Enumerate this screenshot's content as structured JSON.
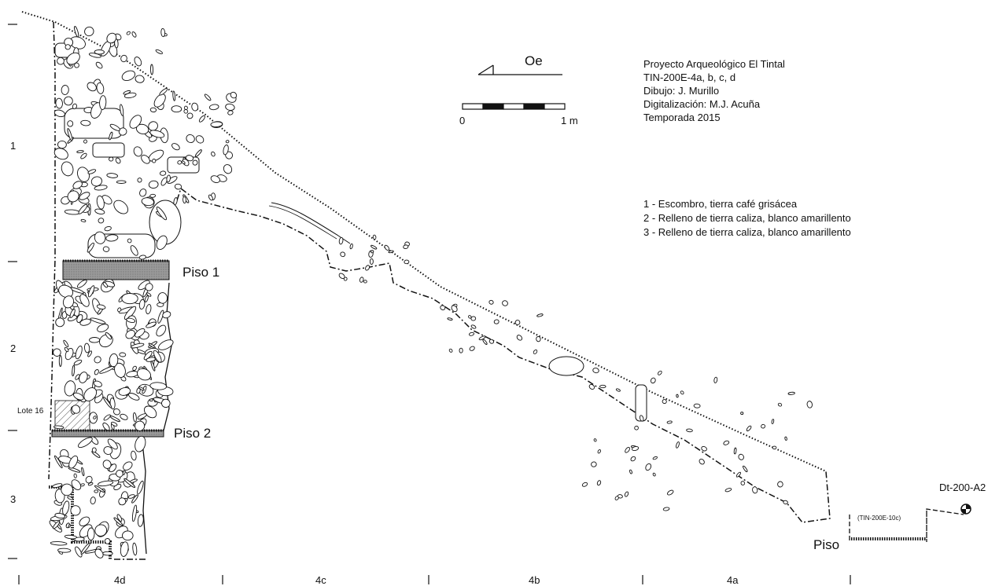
{
  "project_info": {
    "lines": [
      "Proyecto Arqueológico El Tintal",
      "TIN-200E-4a, b, c, d",
      "Dibujo: J. Murillo",
      "Digitalización: M.J. Acuña",
      "Temporada 2015"
    ]
  },
  "orientation": {
    "label": "Oe"
  },
  "scale_bar": {
    "start_label": "0",
    "end_label": "1 m",
    "segments": 5
  },
  "legend": {
    "items": [
      "1 - Escombro, tierra café grisácea",
      "2 - Relleno de tierra caliza, blanco amarillento",
      "3 - Relleno de tierra caliza, blanco amarillento"
    ]
  },
  "layer_numbers": [
    "1",
    "2",
    "3"
  ],
  "floors": {
    "piso1": "Piso 1",
    "piso2": "Piso 2",
    "piso": "Piso"
  },
  "lote": "Lote 16",
  "reference_note": "(TIN-200E-10c)",
  "datum": "Dt-200-A2",
  "units": [
    "4d",
    "4c",
    "4b",
    "4a"
  ],
  "colors": {
    "ink": "#111111",
    "floor_fill": "#8c8c8c",
    "paper": "#ffffff"
  }
}
